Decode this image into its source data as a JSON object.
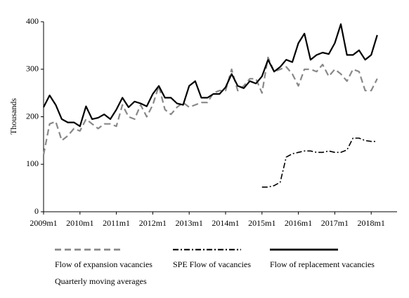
{
  "chart_data": {
    "type": "line",
    "y_label": "Thousands",
    "note": "Quarterly moving averages",
    "categories": [
      "2009m1",
      null,
      null,
      null,
      null,
      null,
      "2010m1",
      null,
      null,
      null,
      null,
      null,
      "2011m1",
      null,
      null,
      null,
      null,
      null,
      "2012m1",
      null,
      null,
      null,
      null,
      null,
      "2013m1",
      null,
      null,
      null,
      null,
      null,
      "2014m1",
      null,
      null,
      null,
      null,
      null,
      "2015m1",
      null,
      null,
      null,
      null,
      null,
      "2016m1",
      null,
      null,
      null,
      null,
      null,
      "2017m1",
      null,
      null,
      null,
      null,
      null,
      "2018m1",
      null
    ],
    "series": [
      {
        "name": "Flow of expansion vacancies",
        "color": "#888888",
        "dash": "9,5",
        "width": 2.2,
        "values": [
          120,
          185,
          190,
          150,
          160,
          175,
          170,
          195,
          185,
          175,
          185,
          185,
          180,
          225,
          200,
          195,
          225,
          200,
          225,
          265,
          215,
          205,
          220,
          230,
          220,
          225,
          230,
          230,
          250,
          255,
          255,
          300,
          255,
          265,
          280,
          280,
          250,
          325,
          295,
          300,
          305,
          290,
          265,
          300,
          300,
          295,
          310,
          285,
          300,
          290,
          275,
          300,
          295,
          255,
          255,
          280
        ]
      },
      {
        "name": "SPE Flow of vacancies",
        "color": "#000000",
        "dash": "8,3,2,3",
        "width": 1.6,
        "values": [
          null,
          null,
          null,
          null,
          null,
          null,
          null,
          null,
          null,
          null,
          null,
          null,
          null,
          null,
          null,
          null,
          null,
          null,
          null,
          null,
          null,
          null,
          null,
          null,
          null,
          null,
          null,
          null,
          null,
          null,
          null,
          null,
          null,
          null,
          null,
          null,
          52,
          52,
          55,
          62,
          115,
          122,
          125,
          128,
          128,
          125,
          125,
          128,
          125,
          125,
          130,
          155,
          155,
          150,
          148,
          148
        ]
      },
      {
        "name": "Flow of replacement vacancies",
        "color": "#000000",
        "dash": "none",
        "width": 2.2,
        "values": [
          220,
          245,
          225,
          195,
          188,
          188,
          180,
          222,
          195,
          198,
          205,
          195,
          215,
          240,
          220,
          232,
          228,
          222,
          248,
          265,
          240,
          240,
          228,
          225,
          265,
          275,
          240,
          240,
          248,
          248,
          262,
          290,
          265,
          260,
          275,
          270,
          285,
          320,
          295,
          305,
          320,
          315,
          355,
          375,
          320,
          330,
          335,
          332,
          355,
          395,
          330,
          330,
          340,
          320,
          330,
          372
        ]
      }
    ],
    "ylim": [
      0,
      400
    ],
    "yticks": [
      0,
      100,
      200,
      300,
      400
    ]
  }
}
